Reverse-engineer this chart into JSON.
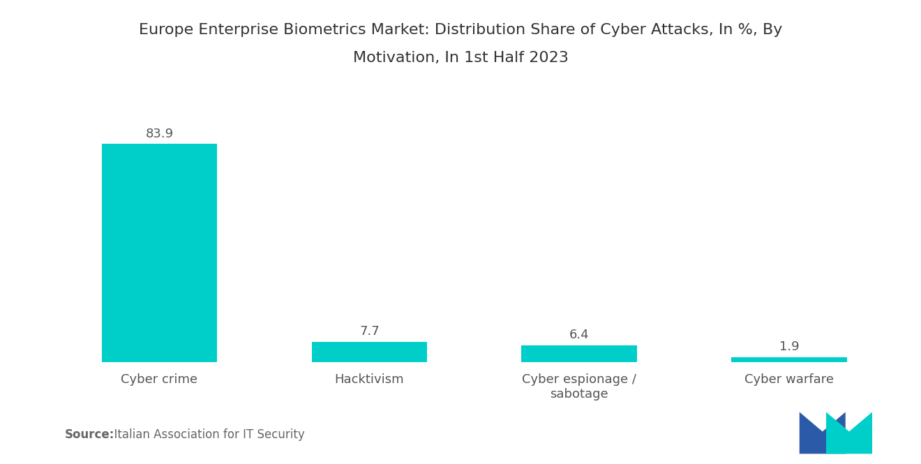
{
  "title_line1": "Europe Enterprise Biometrics Market: Distribution Share of Cyber Attacks, In %, By",
  "title_line2": "Motivation, In 1st Half 2023",
  "categories": [
    "Cyber crime",
    "Hacktivism",
    "Cyber espionage /\nsabotage",
    "Cyber warfare"
  ],
  "values": [
    83.9,
    7.7,
    6.4,
    1.9
  ],
  "bar_color": "#00CEC9",
  "background_color": "#ffffff",
  "source_bold": "Source:",
  "source_normal": "  Italian Association for IT Security",
  "title_fontsize": 16,
  "label_fontsize": 13,
  "value_fontsize": 13,
  "source_fontsize": 12,
  "ylim": [
    0,
    100
  ],
  "bar_width": 0.55
}
